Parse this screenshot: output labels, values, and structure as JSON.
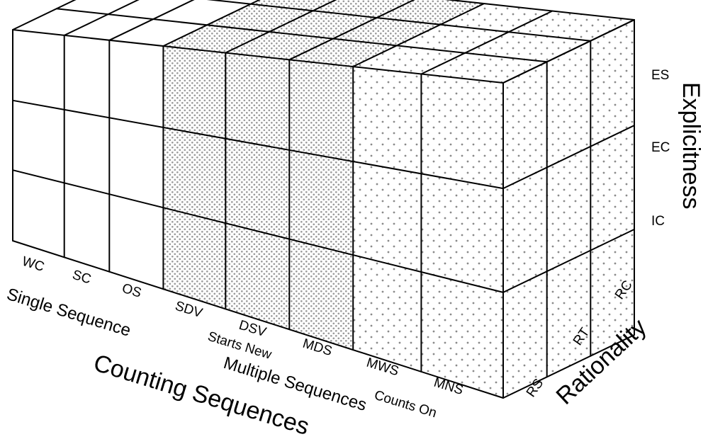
{
  "diagram": {
    "axes": {
      "counting_sequences": {
        "title": "Counting Sequences",
        "groups": [
          {
            "label": "Single Sequence",
            "pattern": "plain",
            "codes": [
              "WC",
              "SC",
              "OS"
            ]
          },
          {
            "label": "Multiple Sequences",
            "pattern": "dense-dots",
            "subgroup_label": "Starts New",
            "codes": [
              "SDV",
              "DSV",
              "MDS"
            ]
          },
          {
            "label": "Multiple Sequences",
            "pattern": "sparse-dots",
            "subgroup_label": "Counts On",
            "codes": [
              "MWS",
              "MNS"
            ]
          }
        ]
      },
      "explicitness": {
        "title": "Explicitness",
        "levels": [
          "ES",
          "EC",
          "IC"
        ]
      },
      "rationality": {
        "title": "Rationality",
        "levels": [
          "RS",
          "RT",
          "RC"
        ]
      }
    },
    "labels": {
      "cs_axis": "Counting Sequences",
      "single": "Single Sequence",
      "multiple": "Multiple Sequences",
      "starts_new": "Starts New",
      "counts_on": "Counts On",
      "explicitness": "Explicitness",
      "rationality": "Rationality",
      "wc": "WC",
      "sc": "SC",
      "os": "OS",
      "sdv": "SDV",
      "dsv": "DSV",
      "mds": "MDS",
      "mws": "MWS",
      "mns": "MNS",
      "es": "ES",
      "ec": "EC",
      "ic": "IC",
      "rs": "RS",
      "rt": "RT",
      "rc": "RC"
    },
    "colors": {
      "line": "#000000",
      "dense_dots": "#9a9a9a",
      "sparse_dots": "#8a8a8a",
      "background": "#ffffff"
    }
  }
}
